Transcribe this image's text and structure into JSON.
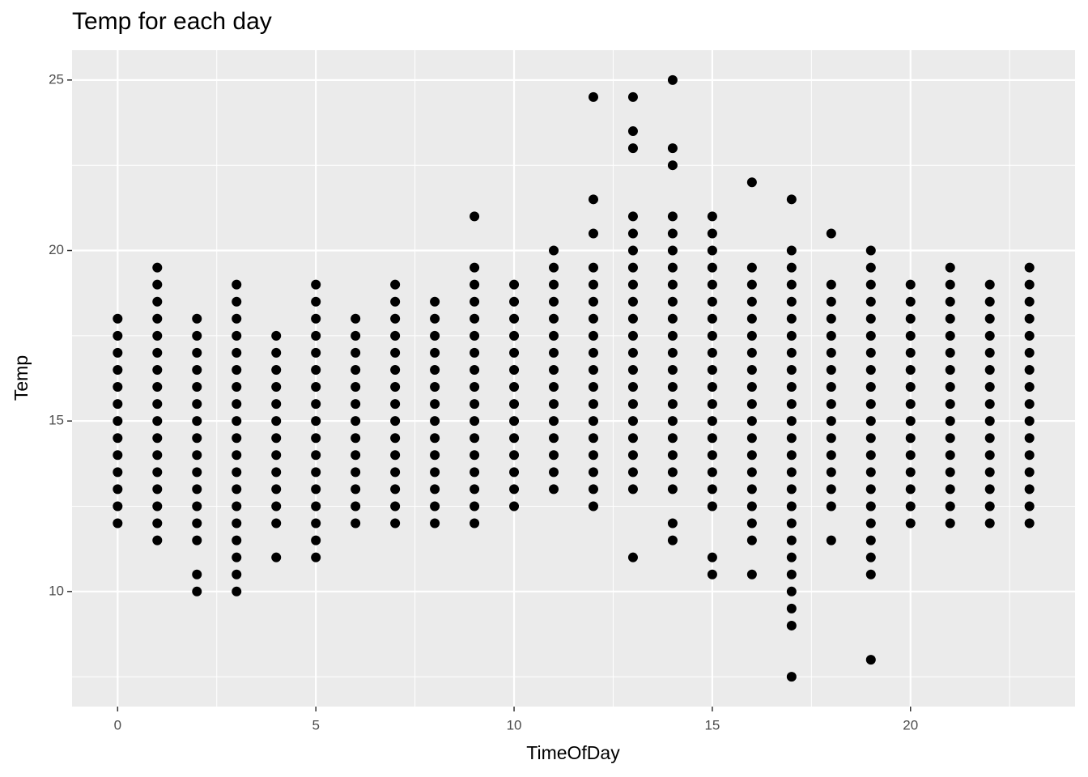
{
  "chart_data": {
    "type": "scatter",
    "title": "Temp for each day",
    "x_label": "TimeOfDay",
    "y_label": "Temp",
    "color": "#000000",
    "grid": true,
    "xlim": [
      -1.15,
      24.15
    ],
    "ylim": [
      6.625,
      25.875
    ],
    "xticks": [
      0,
      5,
      10,
      15,
      20
    ],
    "yticks": [
      10,
      15,
      20,
      25
    ],
    "x_minor_grid": [
      2.5,
      7.5,
      12.5,
      17.5,
      22.5
    ],
    "y_minor_grid": [
      7.5,
      12.5,
      17.5,
      22.5
    ],
    "x": [
      0,
      1,
      2,
      3,
      4,
      5,
      6,
      7,
      8,
      9,
      10,
      11,
      12,
      13,
      14,
      15,
      16,
      17,
      18,
      19,
      20,
      21,
      22,
      23
    ],
    "values": [
      [
        12,
        12.5,
        13,
        13.5,
        14,
        14.5,
        15,
        15.5,
        16,
        16.5,
        17,
        17.5,
        18
      ],
      [
        11.5,
        12,
        12.5,
        13,
        13.5,
        14,
        14.5,
        15,
        15.5,
        16,
        16.5,
        17,
        17.5,
        18,
        18.5,
        19,
        19.5
      ],
      [
        10,
        10.5,
        11.5,
        12,
        12.5,
        13,
        13.5,
        14,
        14.5,
        15,
        15.5,
        16,
        16.5,
        17,
        17.5,
        18
      ],
      [
        10,
        10.5,
        11,
        11.5,
        12,
        12.5,
        13,
        13.5,
        14,
        14.5,
        15,
        15.5,
        16,
        16.5,
        17,
        17.5,
        18,
        18.5,
        19
      ],
      [
        11,
        12,
        12.5,
        13,
        13.5,
        14,
        14.5,
        15,
        15.5,
        16,
        16.5,
        17,
        17.5
      ],
      [
        11,
        11.5,
        12,
        12.5,
        13,
        13.5,
        14,
        14.5,
        15,
        15.5,
        16,
        16.5,
        17,
        17.5,
        18,
        18.5,
        19
      ],
      [
        12,
        12.5,
        13,
        13.5,
        14,
        14.5,
        15,
        15.5,
        16,
        16.5,
        17,
        17.5,
        18
      ],
      [
        12,
        12.5,
        13,
        13.5,
        14,
        14.5,
        15,
        15.5,
        16,
        16.5,
        17,
        17.5,
        18,
        18.5,
        19
      ],
      [
        12,
        12.5,
        13,
        13.5,
        14,
        14.5,
        15,
        15.5,
        16,
        16.5,
        17,
        17.5,
        18,
        18.5
      ],
      [
        12,
        12.5,
        13,
        13.5,
        14,
        14.5,
        15,
        15.5,
        16,
        16.5,
        17,
        17.5,
        18,
        18.5,
        19,
        19.5,
        21
      ],
      [
        12.5,
        13,
        13.5,
        14,
        14.5,
        15,
        15.5,
        16,
        16.5,
        17,
        17.5,
        18,
        18.5,
        19
      ],
      [
        13,
        13.5,
        14,
        14.5,
        15,
        15.5,
        16,
        16.5,
        17,
        17.5,
        18,
        18.5,
        19,
        19.5,
        20
      ],
      [
        12.5,
        13,
        13.5,
        14,
        14.5,
        15,
        15.5,
        16,
        16.5,
        17,
        17.5,
        18,
        18.5,
        19,
        19.5,
        20.5,
        21.5,
        24.5
      ],
      [
        11,
        13,
        13.5,
        14,
        14.5,
        15,
        15.5,
        16,
        16.5,
        17,
        17.5,
        18,
        18.5,
        19,
        19.5,
        20,
        20.5,
        21,
        23,
        23.5,
        24.5
      ],
      [
        11.5,
        12,
        13,
        13.5,
        14,
        14.5,
        15,
        15.5,
        16,
        16.5,
        17,
        17.5,
        18,
        18.5,
        19,
        19.5,
        20,
        20.5,
        21,
        22.5,
        23,
        25
      ],
      [
        10.5,
        11,
        12.5,
        13,
        13.5,
        14,
        14.5,
        15,
        15.5,
        16,
        16.5,
        17,
        17.5,
        18,
        18.5,
        19,
        19.5,
        20,
        20.5,
        21
      ],
      [
        10.5,
        11.5,
        12,
        12.5,
        13,
        13.5,
        14,
        14.5,
        15,
        15.5,
        16,
        16.5,
        17,
        17.5,
        18,
        18.5,
        19,
        19.5,
        22
      ],
      [
        7.5,
        9,
        9.5,
        10,
        10.5,
        11,
        11.5,
        12,
        12.5,
        13,
        13.5,
        14,
        14.5,
        15,
        15.5,
        16,
        16.5,
        17,
        17.5,
        18,
        18.5,
        19,
        19.5,
        20,
        21.5
      ],
      [
        11.5,
        12.5,
        13,
        13.5,
        14,
        14.5,
        15,
        15.5,
        16,
        16.5,
        17,
        17.5,
        18,
        18.5,
        19,
        20.5
      ],
      [
        8,
        10.5,
        11,
        11.5,
        12,
        12.5,
        13,
        13.5,
        14,
        14.5,
        15,
        15.5,
        16,
        16.5,
        17,
        17.5,
        18,
        18.5,
        19,
        19.5,
        20
      ],
      [
        12,
        12.5,
        13,
        13.5,
        14,
        14.5,
        15,
        15.5,
        16,
        16.5,
        17,
        17.5,
        18,
        18.5,
        19
      ],
      [
        12,
        12.5,
        13,
        13.5,
        14,
        14.5,
        15,
        15.5,
        16,
        16.5,
        17,
        17.5,
        18,
        18.5,
        19,
        19.5
      ],
      [
        12,
        12.5,
        13,
        13.5,
        14,
        14.5,
        15,
        15.5,
        16,
        16.5,
        17,
        17.5,
        18,
        18.5,
        19
      ],
      [
        12,
        12.5,
        13,
        13.5,
        14,
        14.5,
        15,
        15.5,
        16,
        16.5,
        17,
        17.5,
        18,
        18.5,
        19,
        19.5
      ]
    ]
  }
}
